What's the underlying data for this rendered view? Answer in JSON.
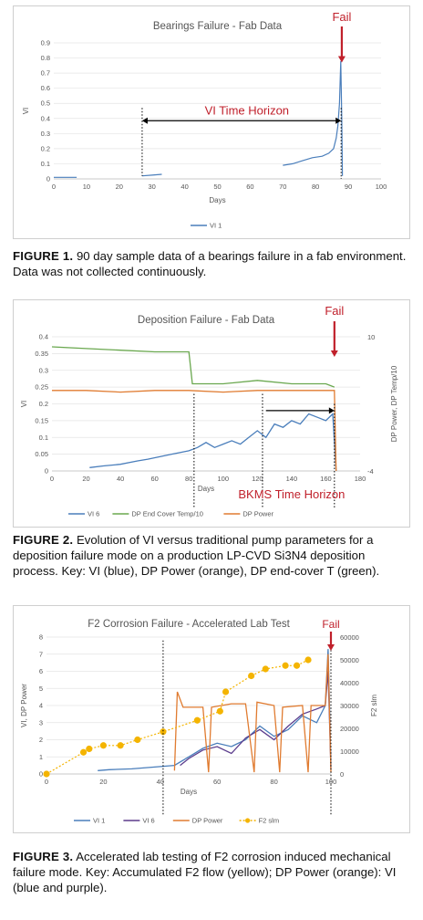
{
  "figures": [
    {
      "caption_label": "FIGURE 1.",
      "caption_text": " 90 day sample data of a bearings failure in a fab environment. Data was not collected continuously."
    },
    {
      "caption_label": "FIGURE 2.",
      "caption_text": " Evolution of VI versus traditional pump parameters for a deposition failure mode on a production LP-CVD Si3N4 deposition process. Key: VI (blue), DP Power (orange), DP end-cover T (green)."
    },
    {
      "caption_label": "FIGURE 3.",
      "caption_text": " Accelerated lab testing of F2 corrosion induced mechanical failure mode. Key: Accumulated F2 flow (yellow); DP Power (orange): VI (blue and purple)."
    }
  ],
  "colors": {
    "blue": "#4a7ebb",
    "orange": "#e07b30",
    "green": "#6aa84f",
    "yellow": "#f4b400",
    "purple": "#5b3c8c",
    "red": "#c0202b"
  },
  "chart_data": [
    {
      "type": "line",
      "title": "Bearings Failure - Fab Data",
      "xlabel": "Days",
      "ylabel": "VI",
      "xlim": [
        0,
        100
      ],
      "ylim": [
        0,
        0.9
      ],
      "xticks": [
        "0",
        "10",
        "20",
        "30",
        "40",
        "50",
        "60",
        "70",
        "80",
        "90",
        "100"
      ],
      "yticks": [
        "0",
        "0.1",
        "0.2",
        "0.3",
        "0.4",
        "0.5",
        "0.6",
        "0.7",
        "0.8",
        "0.9"
      ],
      "series": [
        {
          "name": "VI 1",
          "color": "#4a7ebb",
          "segments": [
            [
              [
                0,
                0.01
              ],
              [
                7,
                0.01
              ]
            ],
            [
              [
                27,
                0.02
              ],
              [
                30,
                0.025
              ],
              [
                33,
                0.03
              ]
            ],
            [
              [
                70,
                0.09
              ],
              [
                73,
                0.1
              ],
              [
                76,
                0.12
              ],
              [
                79,
                0.14
              ],
              [
                82,
                0.15
              ],
              [
                84,
                0.17
              ],
              [
                85.5,
                0.2
              ],
              [
                86.3,
                0.27
              ],
              [
                86.8,
                0.35
              ],
              [
                87.3,
                0.5
              ],
              [
                87.7,
                0.78
              ],
              [
                88,
                0.4
              ],
              [
                88.2,
                0.02
              ]
            ]
          ]
        }
      ],
      "annotations": {
        "fail_label": "Fail",
        "horizon_label": "VI Time Horizon"
      }
    },
    {
      "type": "line",
      "title": "Deposition Failure - Fab Data",
      "xlabel": "Days",
      "ylabel": "VI",
      "y2label": "DP Power, DP Temp/10",
      "xlim": [
        0,
        180
      ],
      "ylim": [
        0,
        0.4
      ],
      "y2lim": [
        -4,
        10
      ],
      "xticks": [
        "0",
        "20",
        "40",
        "60",
        "80",
        "100",
        "120",
        "140",
        "160",
        "180"
      ],
      "yticks": [
        "0",
        "0.05",
        "0.1",
        "0.15",
        "0.2",
        "0.25",
        "0.3",
        "0.35",
        "0.4"
      ],
      "y2ticks": [
        "-4",
        "10"
      ],
      "series": [
        {
          "name": "VI 6",
          "color": "#4a7ebb",
          "points": [
            [
              22,
              0.01
            ],
            [
              30,
              0.015
            ],
            [
              40,
              0.02
            ],
            [
              50,
              0.03
            ],
            [
              56,
              0.035
            ],
            [
              70,
              0.05
            ],
            [
              80,
              0.06
            ],
            [
              85,
              0.07
            ],
            [
              90,
              0.085
            ],
            [
              95,
              0.07
            ],
            [
              100,
              0.08
            ],
            [
              105,
              0.09
            ],
            [
              110,
              0.08
            ],
            [
              115,
              0.1
            ],
            [
              120,
              0.12
            ],
            [
              125,
              0.1
            ],
            [
              130,
              0.14
            ],
            [
              135,
              0.13
            ],
            [
              140,
              0.15
            ],
            [
              145,
              0.14
            ],
            [
              150,
              0.17
            ],
            [
              155,
              0.16
            ],
            [
              160,
              0.15
            ],
            [
              164,
              0.17
            ],
            [
              166,
              0.0
            ]
          ]
        },
        {
          "name": "DP End Cover Temp/10",
          "color": "#6aa84f",
          "points": [
            [
              0,
              0.37
            ],
            [
              20,
              0.365
            ],
            [
              40,
              0.36
            ],
            [
              60,
              0.355
            ],
            [
              75,
              0.355
            ],
            [
              80,
              0.355
            ],
            [
              82,
              0.26
            ],
            [
              100,
              0.26
            ],
            [
              120,
              0.27
            ],
            [
              140,
              0.26
            ],
            [
              160,
              0.26
            ],
            [
              165,
              0.25
            ]
          ]
        },
        {
          "name": "DP Power",
          "color": "#e07b30",
          "points": [
            [
              0,
              0.24
            ],
            [
              20,
              0.24
            ],
            [
              40,
              0.235
            ],
            [
              60,
              0.24
            ],
            [
              80,
              0.24
            ],
            [
              100,
              0.235
            ],
            [
              120,
              0.24
            ],
            [
              140,
              0.24
            ],
            [
              160,
              0.24
            ],
            [
              165,
              0.24
            ],
            [
              166,
              0.0
            ]
          ]
        }
      ],
      "annotations": {
        "fail_label": "Fail",
        "horizon_label": "BKMS  Time Horizon"
      }
    },
    {
      "type": "line",
      "title": "F2 Corrosion Failure - Accelerated Lab Test",
      "xlabel": "Days",
      "ylabel": "VI, DP Power",
      "y2label": "F2 slm",
      "xlim": [
        0,
        100
      ],
      "ylim": [
        0,
        8
      ],
      "y2lim": [
        0,
        60000
      ],
      "xticks": [
        "0",
        "20",
        "40",
        "60",
        "80",
        "100"
      ],
      "yticks": [
        "0",
        "1",
        "2",
        "3",
        "4",
        "5",
        "6",
        "7",
        "8"
      ],
      "y2ticks": [
        "0",
        "10000",
        "20000",
        "30000",
        "40000",
        "50000",
        "60000"
      ],
      "series": [
        {
          "name": "VI 1",
          "color": "#4a7ebb",
          "points": [
            [
              18,
              0.2
            ],
            [
              22,
              0.25
            ],
            [
              30,
              0.3
            ],
            [
              45,
              0.5
            ],
            [
              50,
              1.0
            ],
            [
              55,
              1.5
            ],
            [
              60,
              1.8
            ],
            [
              65,
              1.6
            ],
            [
              70,
              2.0
            ],
            [
              75,
              2.8
            ],
            [
              80,
              2.2
            ],
            [
              85,
              2.6
            ],
            [
              90,
              3.4
            ],
            [
              95,
              3.0
            ],
            [
              98,
              4.0
            ],
            [
              99,
              7.3
            ],
            [
              100,
              0.5
            ]
          ]
        },
        {
          "name": "VI 6",
          "color": "#5b3c8c",
          "points": [
            [
              47,
              0.5
            ],
            [
              50,
              0.9
            ],
            [
              55,
              1.4
            ],
            [
              60,
              1.6
            ],
            [
              65,
              1.2
            ],
            [
              70,
              2.1
            ],
            [
              75,
              2.6
            ],
            [
              80,
              2.0
            ],
            [
              85,
              2.8
            ],
            [
              90,
              3.5
            ],
            [
              95,
              3.8
            ],
            [
              98,
              4.0
            ],
            [
              99,
              6.0
            ],
            [
              100,
              0.3
            ]
          ]
        },
        {
          "name": "DP Power",
          "color": "#e07b30",
          "points": [
            [
              45,
              0.2
            ],
            [
              46,
              4.8
            ],
            [
              48,
              3.9
            ],
            [
              55,
              3.9
            ],
            [
              57,
              0.1
            ],
            [
              58,
              3.9
            ],
            [
              65,
              4.1
            ],
            [
              70,
              4.1
            ],
            [
              73,
              0.1
            ],
            [
              74,
              4.2
            ],
            [
              80,
              4.0
            ],
            [
              82,
              0.1
            ],
            [
              83,
              3.9
            ],
            [
              90,
              4.0
            ],
            [
              92,
              0.1
            ],
            [
              93,
              4.0
            ],
            [
              98,
              4.0
            ],
            [
              99,
              7.0
            ],
            [
              100,
              0.1
            ]
          ]
        },
        {
          "name": "F2 slm",
          "color": "#f4b400",
          "points": [
            [
              0,
              0
            ],
            [
              13,
              9500
            ],
            [
              15,
              11000
            ],
            [
              20,
              12500
            ],
            [
              26,
              12500
            ],
            [
              32,
              15000
            ],
            [
              41,
              18500
            ],
            [
              53,
              23500
            ],
            [
              61,
              27500
            ],
            [
              63,
              36000
            ],
            [
              72,
              43000
            ],
            [
              77,
              46000
            ],
            [
              84,
              47500
            ],
            [
              88,
              47500
            ],
            [
              92,
              50000
            ]
          ]
        }
      ],
      "annotations": {
        "fail_label": "Fail"
      }
    }
  ]
}
